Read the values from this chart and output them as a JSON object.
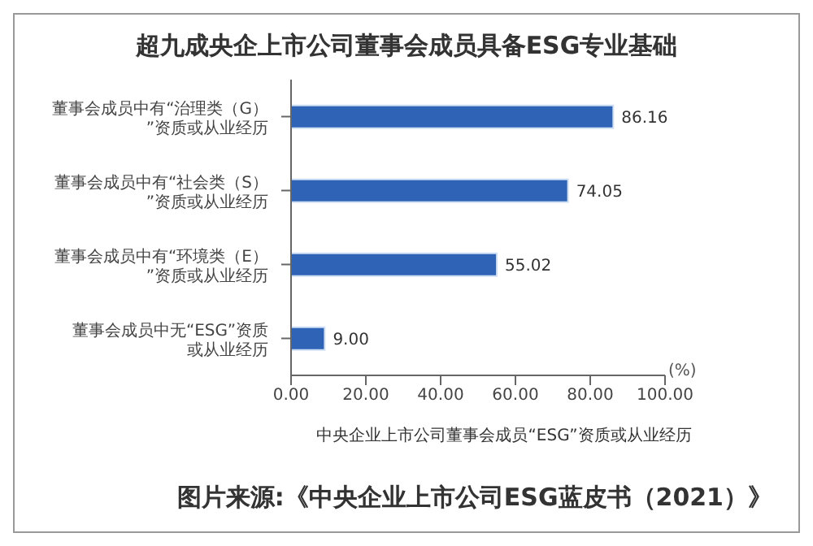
{
  "chart_data": {
    "type": "bar",
    "orientation": "horizontal",
    "title": "超九成央企上市公司董事会成员具备ESG专业基础",
    "xlabel": "中央企业上市公司董事会成员“ESG”资质或从业经历",
    "categories": [
      "董事会成员中有“治理类（G）”资质或从业经历",
      "董事会成员中有“社会类（S）”资质或从业经历",
      "董事会成员中有“环境类（E）”资质或从业经历",
      "董事会成员中无“ESG”资质或从业经历"
    ],
    "values": [
      86.16,
      74.05,
      55.02,
      9.0
    ],
    "color": "#2e63b6",
    "value_labels": [
      "86.16",
      "74.05",
      "55.02",
      "9.00"
    ],
    "xlim": [
      0,
      100
    ],
    "xticks": [
      {
        "value": 0,
        "label": "0.00"
      },
      {
        "value": 20,
        "label": "20.00"
      },
      {
        "value": 40,
        "label": "40.00"
      },
      {
        "value": 60,
        "label": "60.00"
      },
      {
        "value": 80,
        "label": "80.00"
      },
      {
        "value": 100,
        "label": "100.00"
      }
    ],
    "grid": false,
    "legend": false,
    "annotations": [
      "(%)",
      "图片来源:《中央企业上市公司ESG蓝皮书（2021）》"
    ]
  }
}
